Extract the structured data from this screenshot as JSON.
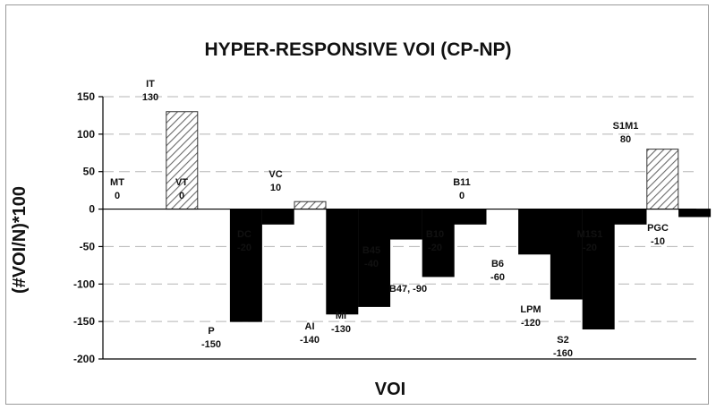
{
  "chart_data": {
    "type": "bar",
    "title": "HYPER-RESPONSIVE VOI (CP-NP)",
    "xlabel": "VOI",
    "ylabel": "(#VOI/N)*100",
    "ylim": [
      -200,
      150
    ],
    "yticks": [
      150,
      100,
      50,
      0,
      -50,
      -100,
      -150,
      -200
    ],
    "grid": true,
    "legend": "none",
    "colors": {
      "hatched": "#9a9a9a",
      "solid": "#000000"
    },
    "categories": [
      "MT",
      "IT",
      "VT",
      "P",
      "DC",
      "VC",
      "AI",
      "MI",
      "B45",
      "B47",
      "B10",
      "B11",
      "B6",
      "LPM",
      "S2",
      "M1S1",
      "S1M1",
      "PGC"
    ],
    "values": [
      0,
      130,
      0,
      -150,
      -20,
      10,
      -140,
      -130,
      -40,
      -90,
      -20,
      0,
      -60,
      -120,
      -160,
      -20,
      80,
      -10
    ],
    "styles": [
      "hatched",
      "hatched",
      "hatched",
      "solid",
      "solid",
      "hatched",
      "solid",
      "solid",
      "solid",
      "solid",
      "solid",
      "solid",
      "solid",
      "solid",
      "solid",
      "solid",
      "hatched",
      "solid"
    ],
    "data_labels": [
      [
        "MT",
        "0"
      ],
      [
        "IT",
        "130"
      ],
      [
        "VT",
        "0"
      ],
      [
        "P",
        "-150"
      ],
      [
        "DC",
        "-20"
      ],
      [
        "VC",
        "10"
      ],
      [
        "AI",
        "-140"
      ],
      [
        "MI",
        "-130"
      ],
      [
        "B45",
        "-40"
      ],
      [
        "B47, -90"
      ],
      [
        "B10",
        "-20"
      ],
      [
        "B11",
        "0"
      ],
      [
        "B6",
        "-60"
      ],
      [
        "LPM",
        "-120"
      ],
      [
        "S2",
        "-160"
      ],
      [
        "M1S1",
        "-20"
      ],
      [
        "S1M1",
        "80"
      ],
      [
        "PGC",
        "-10"
      ]
    ]
  }
}
